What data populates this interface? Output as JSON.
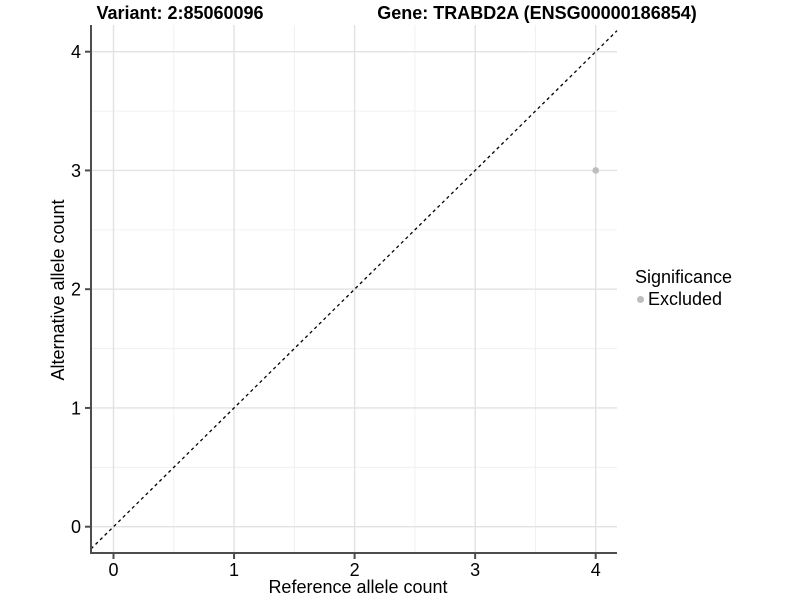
{
  "chart_data": {
    "type": "scatter",
    "title_left": "Variant: 2:85060096",
    "title_right": "Gene: TRABD2A (ENSG00000186854)",
    "xlabel": "Reference allele count",
    "ylabel": "Alternative allele count",
    "xlim": [
      -0.19,
      4.18
    ],
    "ylim": [
      -0.22,
      4.23
    ],
    "x_ticks": [
      0,
      1,
      2,
      3,
      4
    ],
    "y_ticks": [
      0,
      1,
      2,
      3,
      4
    ],
    "grid": "major and minor gridlines on white panel",
    "reference_line": {
      "equation": "y = x",
      "style": "dashed",
      "color": "#000000",
      "dash": "3.2,3.2"
    },
    "series": [
      {
        "name": "Excluded",
        "color": "#bdbdbd",
        "points": [
          {
            "x": 4,
            "y": 3
          }
        ],
        "point_radius": 3.3
      }
    ],
    "legend": {
      "position": "right",
      "title": "Significance",
      "entries": [
        {
          "label": "Excluded",
          "color": "#bdbdbd"
        }
      ]
    },
    "colors": {
      "panel_bg": "#ffffff",
      "grid_major": "#e2e2e2",
      "grid_minor": "#f0f0f0",
      "axis": "#4d4d4d",
      "text": "#000000"
    }
  }
}
